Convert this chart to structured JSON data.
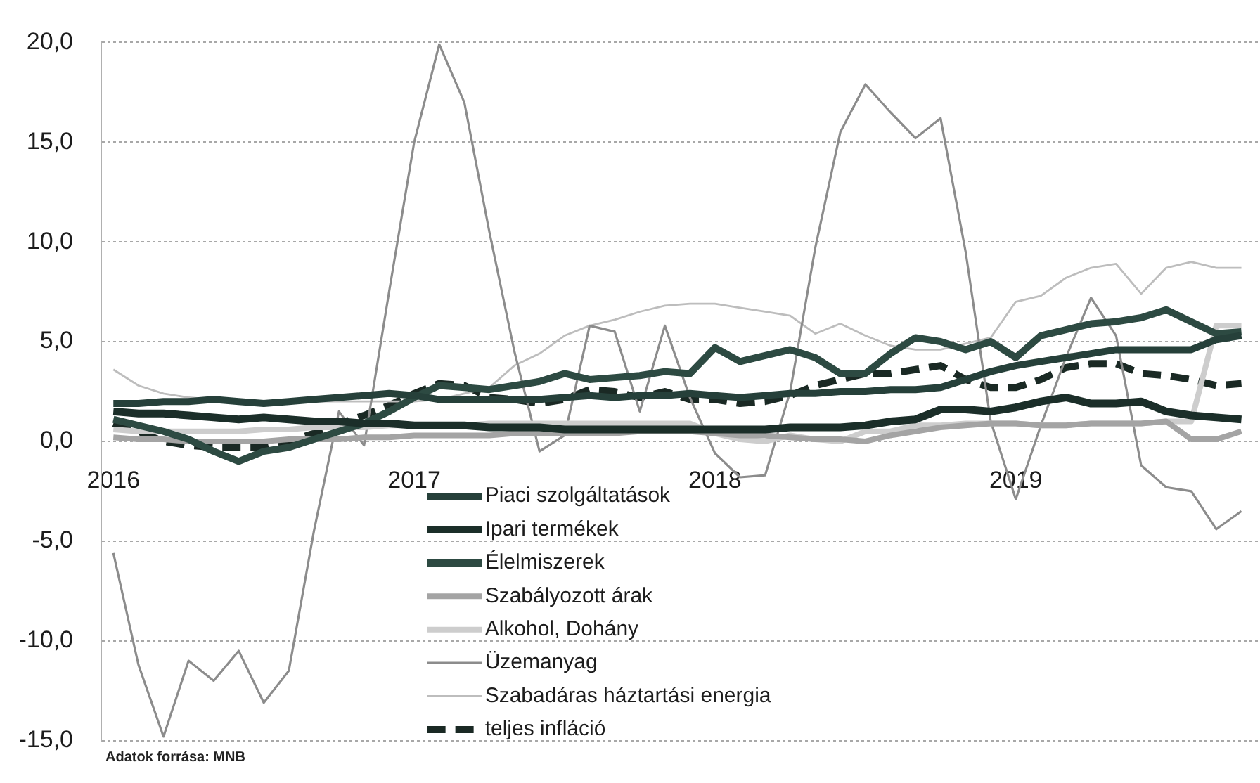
{
  "chart_data": {
    "type": "line",
    "x": [
      "2016-01",
      "2016-02",
      "2016-03",
      "2016-04",
      "2016-05",
      "2016-06",
      "2016-07",
      "2016-08",
      "2016-09",
      "2016-10",
      "2016-11",
      "2016-12",
      "2017-01",
      "2017-02",
      "2017-03",
      "2017-04",
      "2017-05",
      "2017-06",
      "2017-07",
      "2017-08",
      "2017-09",
      "2017-10",
      "2017-11",
      "2017-12",
      "2018-01",
      "2018-02",
      "2018-03",
      "2018-04",
      "2018-05",
      "2018-06",
      "2018-07",
      "2018-08",
      "2018-09",
      "2018-10",
      "2018-11",
      "2018-12",
      "2019-01",
      "2019-02",
      "2019-03",
      "2019-04",
      "2019-05",
      "2019-06",
      "2019-07",
      "2019-08",
      "2019-09",
      "2019-10"
    ],
    "series": [
      {
        "name": "Piaci szolgáltatások",
        "color": "#26403a",
        "values": [
          1.9,
          1.9,
          2.0,
          2.0,
          2.1,
          2.0,
          1.9,
          2.0,
          2.1,
          2.2,
          2.3,
          2.4,
          2.3,
          2.1,
          2.1,
          2.1,
          2.1,
          2.1,
          2.2,
          2.3,
          2.2,
          2.3,
          2.3,
          2.4,
          2.3,
          2.2,
          2.3,
          2.4,
          2.4,
          2.5,
          2.5,
          2.6,
          2.6,
          2.7,
          3.1,
          3.5,
          3.8,
          4.0,
          4.2,
          4.4,
          4.6,
          4.6,
          4.6,
          4.6,
          5.1,
          5.3
        ]
      },
      {
        "name": "Ipari termékek",
        "color": "#1b2e29",
        "values": [
          1.5,
          1.4,
          1.4,
          1.3,
          1.2,
          1.1,
          1.2,
          1.1,
          1.0,
          1.0,
          0.9,
          0.9,
          0.8,
          0.8,
          0.8,
          0.7,
          0.7,
          0.7,
          0.6,
          0.6,
          0.6,
          0.6,
          0.6,
          0.6,
          0.6,
          0.6,
          0.6,
          0.7,
          0.7,
          0.7,
          0.8,
          1.0,
          1.1,
          1.6,
          1.6,
          1.5,
          1.7,
          2.0,
          2.2,
          1.9,
          1.9,
          2.0,
          1.5,
          1.3,
          1.2,
          1.1
        ]
      },
      {
        "name": "Élelmiszerek",
        "color": "#2d4a42",
        "values": [
          1.1,
          0.8,
          0.5,
          0.1,
          -0.5,
          -1.0,
          -0.5,
          -0.3,
          0.1,
          0.5,
          0.9,
          1.5,
          2.2,
          2.8,
          2.7,
          2.6,
          2.8,
          3.0,
          3.4,
          3.1,
          3.2,
          3.3,
          3.5,
          3.4,
          4.7,
          4.0,
          4.3,
          4.6,
          4.2,
          3.4,
          3.4,
          4.4,
          5.2,
          5.0,
          4.6,
          5.0,
          4.2,
          5.3,
          5.6,
          5.9,
          6.0,
          6.2,
          6.6,
          6.0,
          5.4,
          5.5
        ]
      },
      {
        "name": "Szabályozott árak",
        "color": "#a4a4a4",
        "values": [
          0.2,
          0.1,
          0.1,
          0.0,
          0.0,
          0.0,
          0.0,
          0.1,
          0.1,
          0.1,
          0.2,
          0.2,
          0.3,
          0.3,
          0.3,
          0.3,
          0.4,
          0.4,
          0.4,
          0.4,
          0.4,
          0.5,
          0.5,
          0.5,
          0.4,
          0.3,
          0.3,
          0.2,
          0.1,
          0.1,
          0.0,
          0.3,
          0.5,
          0.7,
          0.8,
          0.9,
          0.9,
          0.8,
          0.8,
          0.9,
          0.9,
          0.9,
          1.0,
          0.1,
          0.1,
          0.5
        ]
      },
      {
        "name": "Alkohol, Dohány",
        "color": "#cdcdcd",
        "values": [
          0.6,
          0.5,
          0.5,
          0.5,
          0.5,
          0.5,
          0.6,
          0.6,
          0.7,
          0.7,
          0.7,
          0.8,
          0.8,
          0.8,
          0.8,
          0.9,
          0.9,
          0.9,
          0.9,
          0.9,
          0.9,
          0.9,
          0.9,
          0.9,
          0.4,
          0.1,
          0.0,
          0.3,
          0.1,
          0.0,
          0.5,
          0.5,
          0.8,
          0.8,
          0.9,
          0.9,
          0.9,
          0.8,
          0.8,
          0.9,
          0.9,
          0.9,
          1.0,
          1.0,
          5.8,
          5.8
        ]
      },
      {
        "name": "Üzemanyag",
        "color": "#8c8c8c",
        "values": [
          -5.6,
          -11.2,
          -14.8,
          -11.0,
          -12.0,
          -10.5,
          -13.1,
          -11.5,
          -4.5,
          1.5,
          -0.2,
          7.5,
          15.0,
          19.9,
          17.0,
          10.5,
          4.5,
          -0.5,
          0.3,
          5.8,
          5.5,
          1.5,
          5.8,
          2.2,
          -0.6,
          -1.8,
          -1.7,
          2.5,
          9.7,
          15.5,
          17.9,
          16.5,
          15.2,
          16.2,
          9.5,
          1.0,
          -2.9,
          0.8,
          4.2,
          7.2,
          5.3,
          -1.2,
          -2.3,
          -2.5,
          -4.4,
          -3.5
        ]
      },
      {
        "name": "Szabadáras háztartási energia",
        "color": "#bdbdbd",
        "values": [
          3.6,
          2.8,
          2.4,
          2.2,
          2.1,
          2.0,
          2.0,
          2.0,
          2.0,
          2.0,
          2.0,
          2.0,
          2.0,
          2.1,
          2.4,
          2.7,
          3.8,
          4.4,
          5.3,
          5.8,
          6.1,
          6.5,
          6.8,
          6.9,
          6.9,
          6.7,
          6.5,
          6.3,
          5.4,
          5.9,
          5.3,
          4.8,
          4.6,
          4.6,
          4.9,
          5.2,
          7.0,
          7.3,
          8.2,
          8.7,
          8.9,
          7.4,
          8.7,
          9.0,
          8.7,
          8.7
        ]
      },
      {
        "name": "teljes infláció",
        "color": "#1a2924",
        "line_style": "dashed",
        "values": [
          0.9,
          0.5,
          0.0,
          -0.2,
          -0.3,
          -0.3,
          -0.3,
          0.0,
          0.4,
          0.9,
          1.3,
          1.8,
          2.4,
          2.9,
          2.8,
          2.2,
          2.1,
          1.9,
          2.1,
          2.6,
          2.5,
          2.2,
          2.5,
          2.1,
          2.1,
          1.9,
          2.0,
          2.3,
          2.8,
          3.1,
          3.4,
          3.4,
          3.6,
          3.8,
          3.1,
          2.7,
          2.7,
          3.1,
          3.7,
          3.9,
          3.9,
          3.4,
          3.3,
          3.1,
          2.8,
          2.9
        ]
      }
    ],
    "xlim": [
      "2015-12-17",
      "2019-10-24"
    ],
    "xticks": [
      "2016",
      "2017",
      "2018",
      "2019"
    ],
    "ylim": [
      -15,
      20
    ],
    "yticks": [
      {
        "value": -15,
        "label": "-15,0"
      },
      {
        "value": -10,
        "label": "-10,0"
      },
      {
        "value": -5,
        "label": "-5,0"
      },
      {
        "value": 0,
        "label": "0,0"
      },
      {
        "value": 5,
        "label": "5,0"
      },
      {
        "value": 10,
        "label": "10,0"
      },
      {
        "value": 15,
        "label": "15,0"
      },
      {
        "value": 20,
        "label": "20,0"
      }
    ],
    "grid": "y",
    "legend": "bottom",
    "marker": "none",
    "annotations": [
      "Adatok forrása: MNB"
    ]
  }
}
